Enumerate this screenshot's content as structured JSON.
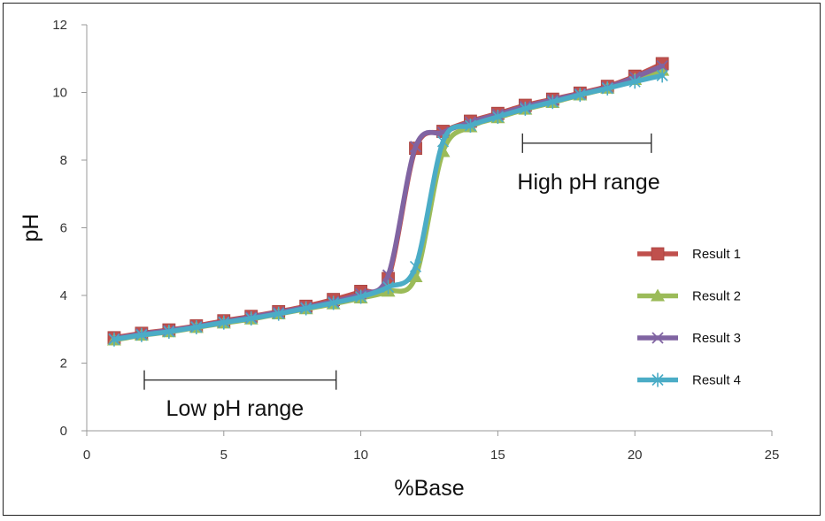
{
  "chart_data": {
    "type": "line",
    "title": "",
    "xlabel": "%Base",
    "ylabel": "pH",
    "xlim": [
      0,
      25
    ],
    "ylim": [
      0,
      12
    ],
    "xticks": [
      0,
      5,
      10,
      15,
      20,
      25
    ],
    "yticks": [
      0,
      2,
      4,
      6,
      8,
      10,
      12
    ],
    "grid": false,
    "legend_position": "right",
    "series": [
      {
        "name": "Result 1",
        "color": "#C0504D",
        "marker": "square",
        "x": [
          1,
          2,
          3,
          4,
          5,
          6,
          7,
          8,
          9,
          10,
          11,
          12,
          13,
          14,
          15,
          16,
          17,
          18,
          19,
          20,
          21
        ],
        "y": [
          2.75,
          2.88,
          2.98,
          3.1,
          3.25,
          3.38,
          3.52,
          3.68,
          3.88,
          4.12,
          4.5,
          8.35,
          8.85,
          9.15,
          9.38,
          9.62,
          9.8,
          9.98,
          10.18,
          10.48,
          10.85
        ]
      },
      {
        "name": "Result 2",
        "color": "#9BBB59",
        "marker": "triangle",
        "x": [
          1,
          2,
          3,
          4,
          5,
          6,
          7,
          8,
          9,
          10,
          11,
          12,
          13,
          14,
          15,
          16,
          17,
          18,
          19,
          20,
          21
        ],
        "y": [
          2.68,
          2.82,
          2.92,
          3.05,
          3.18,
          3.3,
          3.45,
          3.6,
          3.75,
          3.92,
          4.12,
          4.55,
          8.25,
          8.98,
          9.25,
          9.5,
          9.7,
          9.92,
          10.12,
          10.38,
          10.65
        ]
      },
      {
        "name": "Result 3",
        "color": "#8064A2",
        "marker": "x",
        "x": [
          1,
          2,
          3,
          4,
          5,
          6,
          7,
          8,
          9,
          10,
          11,
          12,
          13,
          14,
          15,
          16,
          17,
          18,
          19,
          20,
          21
        ],
        "y": [
          2.72,
          2.86,
          2.96,
          3.08,
          3.22,
          3.36,
          3.5,
          3.65,
          3.82,
          4.05,
          4.6,
          8.4,
          8.82,
          9.12,
          9.35,
          9.58,
          9.78,
          9.96,
          10.15,
          10.45,
          10.78
        ]
      },
      {
        "name": "Result 4",
        "color": "#4BACC6",
        "marker": "asterisk",
        "x": [
          1,
          2,
          3,
          4,
          5,
          6,
          7,
          8,
          9,
          10,
          11,
          12,
          13,
          14,
          15,
          16,
          17,
          18,
          19,
          20,
          21
        ],
        "y": [
          2.7,
          2.83,
          2.93,
          3.06,
          3.2,
          3.32,
          3.46,
          3.62,
          3.78,
          3.96,
          4.25,
          4.85,
          8.55,
          9.02,
          9.28,
          9.52,
          9.72,
          9.93,
          10.12,
          10.32,
          10.5
        ]
      }
    ],
    "annotations": [
      {
        "text": "Low pH range",
        "x_start": 2.1,
        "x_end": 9.1,
        "y": 1.5,
        "label_y": 0.65
      },
      {
        "text": "High pH range",
        "x_start": 15.9,
        "x_end": 20.6,
        "y": 8.5,
        "label_y": 7.35
      }
    ]
  }
}
